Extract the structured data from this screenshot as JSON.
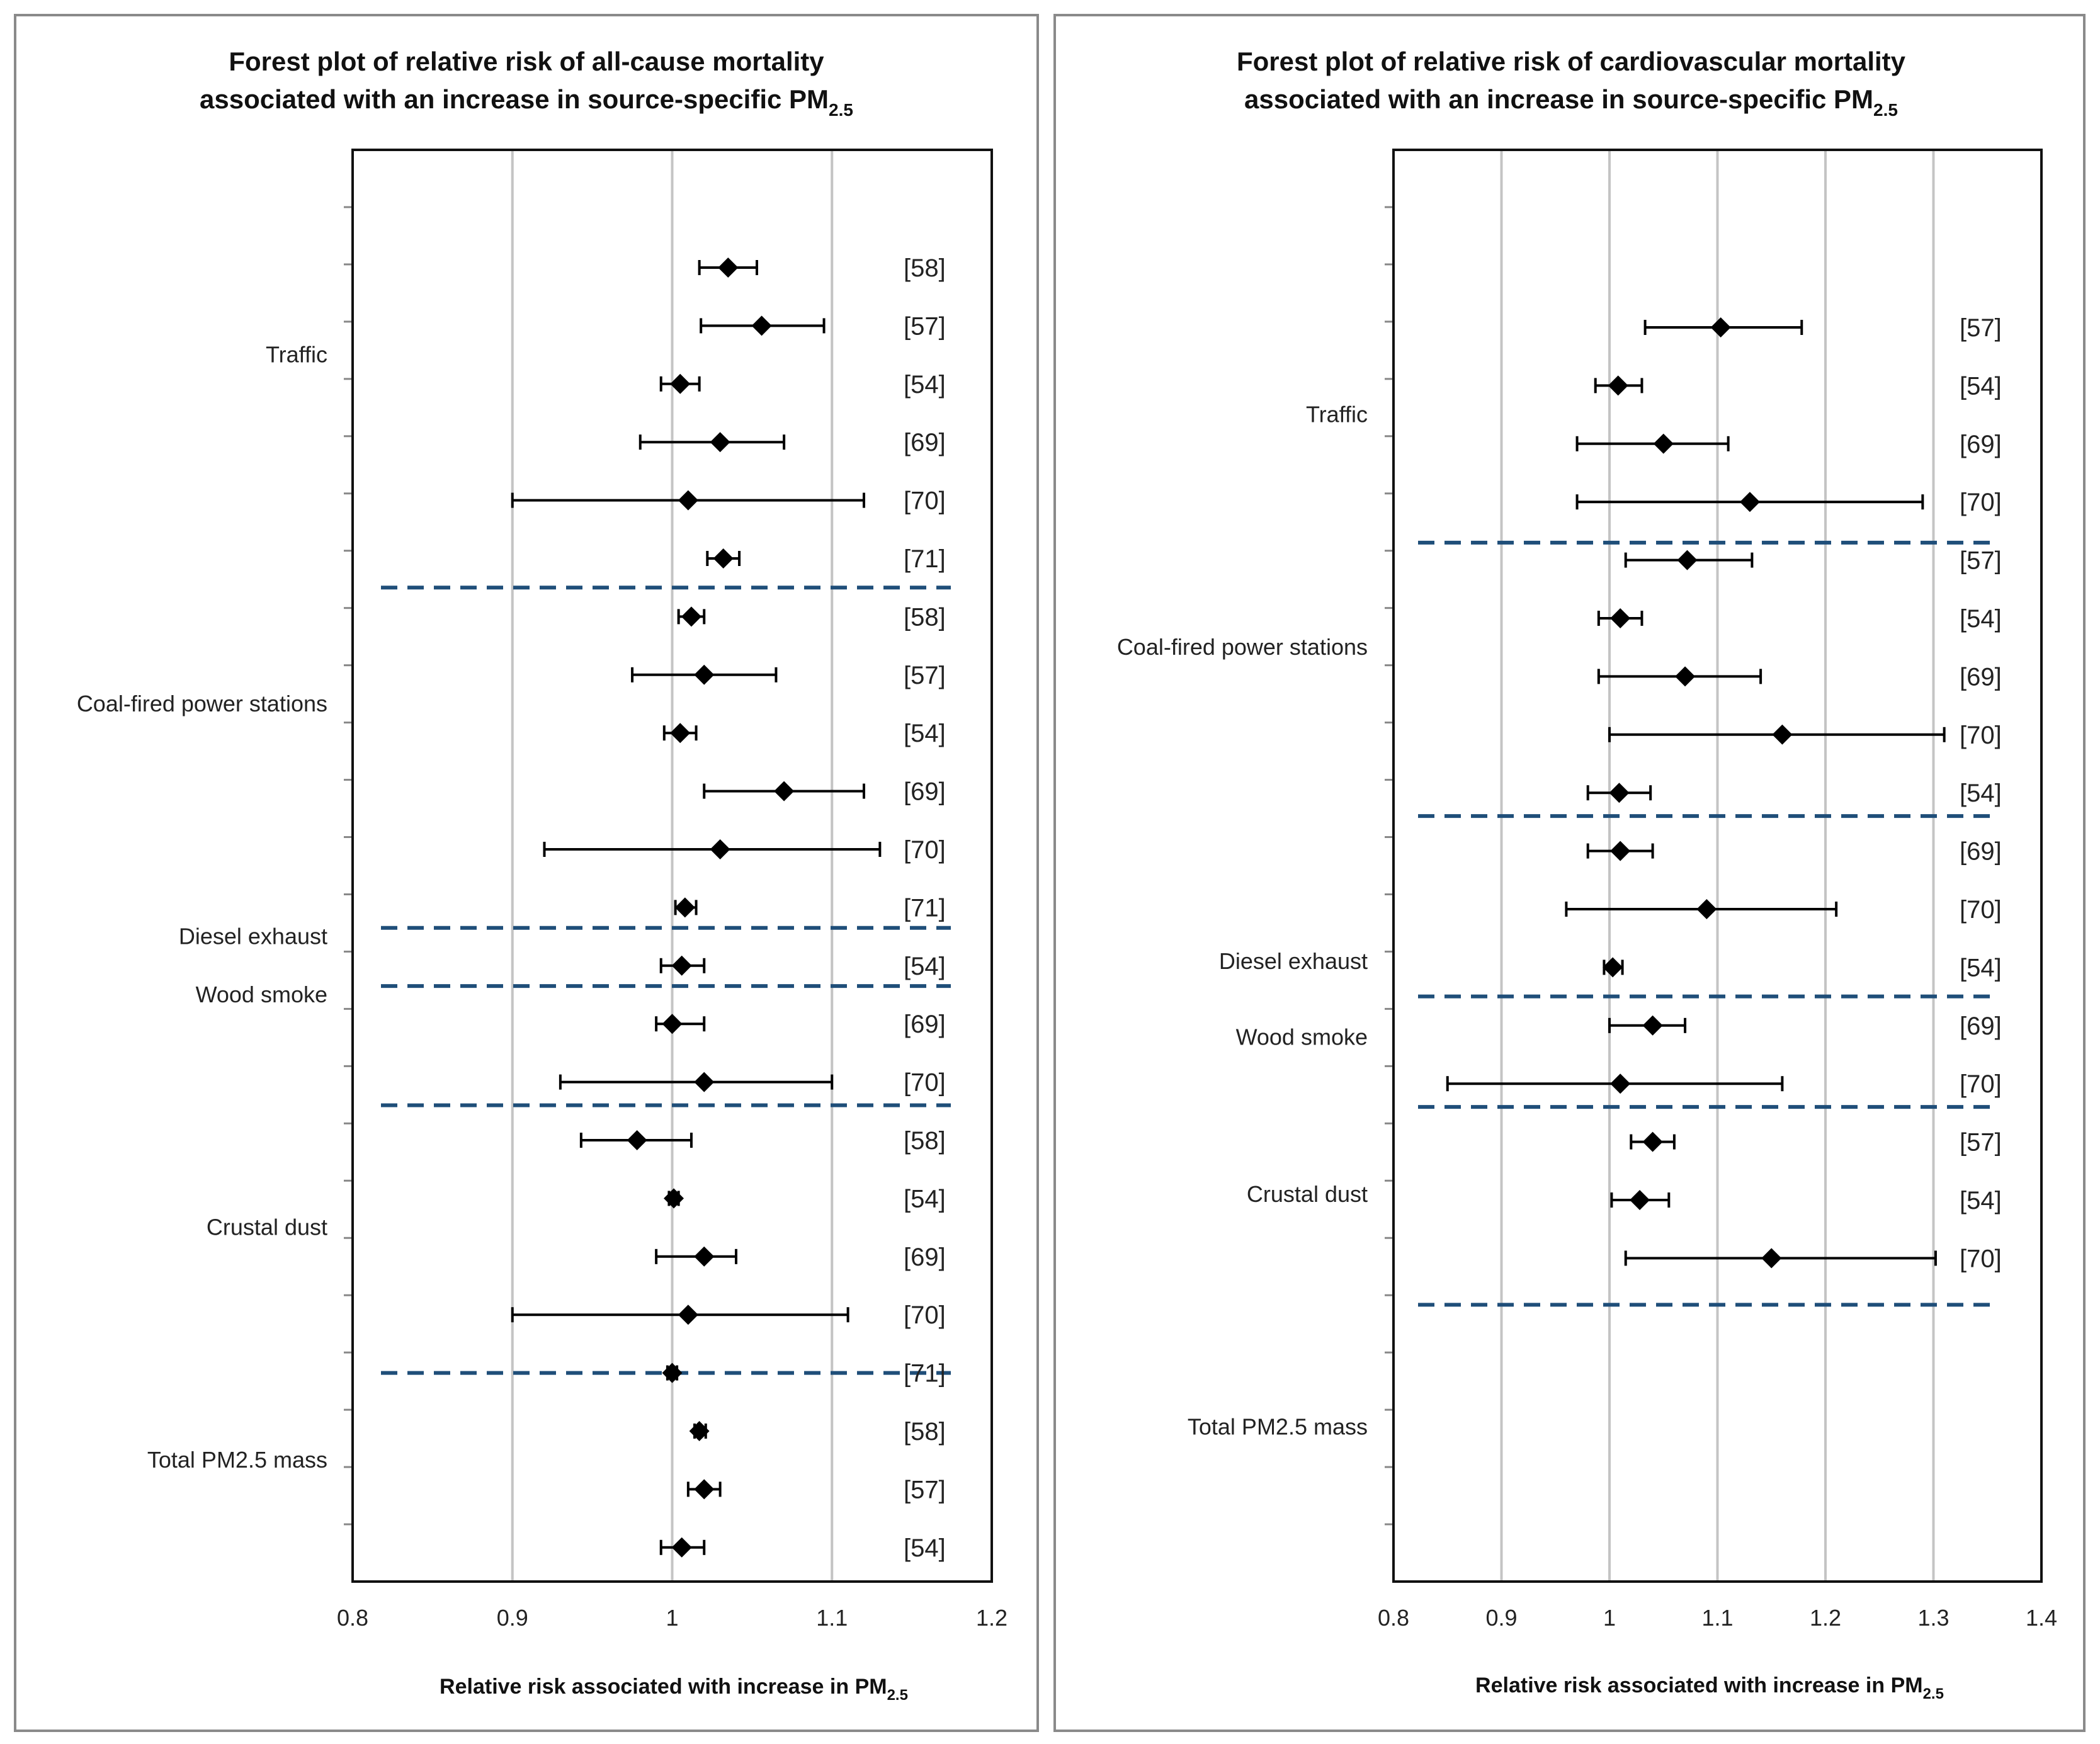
{
  "chart_data": [
    {
      "type": "forest",
      "title_line1": "Forest plot of relative risk of all-cause mortality",
      "title_line2": "associated with an increase in source-specific PM",
      "title_sub": "2.5",
      "xlabel": "Relative risk associated with increase in PM",
      "xlabel_sub": "2.5",
      "xlim": [
        0.8,
        1.2
      ],
      "xticks": [
        0.8,
        0.9,
        1,
        1.1,
        1.2
      ],
      "xtick_labels": [
        "0.8",
        "0.9",
        "1",
        "1.1",
        "1.2"
      ],
      "grid": true,
      "categories": [
        {
          "label": "Traffic",
          "at": 1.5
        },
        {
          "label": "Coal-fired power stations",
          "at": 7.5
        },
        {
          "label": "Diesel exhaust",
          "at": 11.5
        },
        {
          "label": "Wood smoke",
          "at": 12.5
        },
        {
          "label": "Crustal dust",
          "at": 16.5
        },
        {
          "label": "Total PM2.5 mass",
          "at": 20.5
        }
      ],
      "separators": [
        5.5,
        11.35,
        12.35,
        14.4,
        19.0
      ],
      "rows": [
        {
          "ref": "[58]",
          "rr": 1.035,
          "lo": 1.017,
          "hi": 1.053
        },
        {
          "ref": "[57]",
          "rr": 1.056,
          "lo": 1.018,
          "hi": 1.095
        },
        {
          "ref": "[54]",
          "rr": 1.005,
          "lo": 0.993,
          "hi": 1.017
        },
        {
          "ref": "[69]",
          "rr": 1.03,
          "lo": 0.98,
          "hi": 1.07
        },
        {
          "ref": "[70]",
          "rr": 1.01,
          "lo": 0.9,
          "hi": 1.12
        },
        {
          "ref": "[71]",
          "rr": 1.032,
          "lo": 1.022,
          "hi": 1.042
        },
        {
          "ref": "[58]",
          "rr": 1.012,
          "lo": 1.004,
          "hi": 1.02
        },
        {
          "ref": "[57]",
          "rr": 1.02,
          "lo": 0.975,
          "hi": 1.065
        },
        {
          "ref": "[54]",
          "rr": 1.005,
          "lo": 0.995,
          "hi": 1.015
        },
        {
          "ref": "[69]",
          "rr": 1.07,
          "lo": 1.02,
          "hi": 1.12
        },
        {
          "ref": "[70]",
          "rr": 1.03,
          "lo": 0.92,
          "hi": 1.13
        },
        {
          "ref": "[71]",
          "rr": 1.008,
          "lo": 1.002,
          "hi": 1.015
        },
        {
          "ref": "[54]",
          "rr": 1.006,
          "lo": 0.993,
          "hi": 1.02
        },
        {
          "ref": "[69]",
          "rr": 1.0,
          "lo": 0.99,
          "hi": 1.02
        },
        {
          "ref": "[70]",
          "rr": 1.02,
          "lo": 0.93,
          "hi": 1.1
        },
        {
          "ref": "[58]",
          "rr": 0.978,
          "lo": 0.943,
          "hi": 1.012
        },
        {
          "ref": "[54]",
          "rr": 1.001,
          "lo": 0.998,
          "hi": 1.004
        },
        {
          "ref": "[69]",
          "rr": 1.02,
          "lo": 0.99,
          "hi": 1.04
        },
        {
          "ref": "[70]",
          "rr": 1.01,
          "lo": 0.9,
          "hi": 1.11
        },
        {
          "ref": "[71]",
          "rr": 1.0,
          "lo": 0.997,
          "hi": 1.003
        },
        {
          "ref": "[58]",
          "rr": 1.017,
          "lo": 1.014,
          "hi": 1.021
        },
        {
          "ref": "[57]",
          "rr": 1.02,
          "lo": 1.01,
          "hi": 1.03
        },
        {
          "ref": "[54]",
          "rr": 1.006,
          "lo": 0.993,
          "hi": 1.02
        }
      ]
    },
    {
      "type": "forest",
      "title_line1": "Forest plot of relative risk of cardiovascular mortality",
      "title_line2": "associated with an increase in source-specific PM",
      "title_sub": "2.5",
      "xlabel": "Relative risk associated with increase in PM",
      "xlabel_sub": "2.5",
      "xlim": [
        0.8,
        1.4
      ],
      "xticks": [
        0.8,
        0.9,
        1,
        1.1,
        1.2,
        1.3,
        1.4
      ],
      "xtick_labels": [
        "0.8",
        "0.9",
        "1",
        "1.1",
        "1.2",
        "1.3",
        "1.4"
      ],
      "grid": true,
      "categories": [
        {
          "label": "Traffic",
          "at": 1.5
        },
        {
          "label": "Coal-fired power stations",
          "at": 5.5
        },
        {
          "label": "Diesel exhaust",
          "at": 10.9
        },
        {
          "label": "Wood smoke",
          "at": 12.2
        },
        {
          "label": "Crustal dust",
          "at": 14.9
        },
        {
          "label": "Total PM2.5 mass",
          "at": 18.9
        }
      ],
      "separators": [
        3.7,
        8.4,
        11.5,
        13.4,
        16.8
      ],
      "rows": [
        {
          "ref": "[57]",
          "rr": 1.103,
          "lo": 1.033,
          "hi": 1.178
        },
        {
          "ref": "[54]",
          "rr": 1.008,
          "lo": 0.987,
          "hi": 1.03
        },
        {
          "ref": "[69]",
          "rr": 1.05,
          "lo": 0.97,
          "hi": 1.11
        },
        {
          "ref": "[70]",
          "rr": 1.13,
          "lo": 0.97,
          "hi": 1.29
        },
        {
          "ref": "[57]",
          "rr": 1.072,
          "lo": 1.015,
          "hi": 1.132
        },
        {
          "ref": "[54]",
          "rr": 1.01,
          "lo": 0.99,
          "hi": 1.03
        },
        {
          "ref": "[69]",
          "rr": 1.07,
          "lo": 0.99,
          "hi": 1.14
        },
        {
          "ref": "[70]",
          "rr": 1.16,
          "lo": 1.0,
          "hi": 1.31
        },
        {
          "ref": "[54]",
          "rr": 1.009,
          "lo": 0.98,
          "hi": 1.038
        },
        {
          "ref": "[69]",
          "rr": 1.01,
          "lo": 0.98,
          "hi": 1.04
        },
        {
          "ref": "[70]",
          "rr": 1.09,
          "lo": 0.96,
          "hi": 1.21
        },
        {
          "ref": "[54]",
          "rr": 1.003,
          "lo": 0.995,
          "hi": 1.012
        },
        {
          "ref": "[69]",
          "rr": 1.04,
          "lo": 1.0,
          "hi": 1.07
        },
        {
          "ref": "[70]",
          "rr": 1.01,
          "lo": 0.85,
          "hi": 1.16
        },
        {
          "ref": "[57]",
          "rr": 1.04,
          "lo": 1.02,
          "hi": 1.06
        },
        {
          "ref": "[54]",
          "rr": 1.028,
          "lo": 1.002,
          "hi": 1.055
        },
        {
          "ref": "[70]",
          "rr": 1.15,
          "lo": 1.015,
          "hi": 1.302
        }
      ]
    }
  ]
}
